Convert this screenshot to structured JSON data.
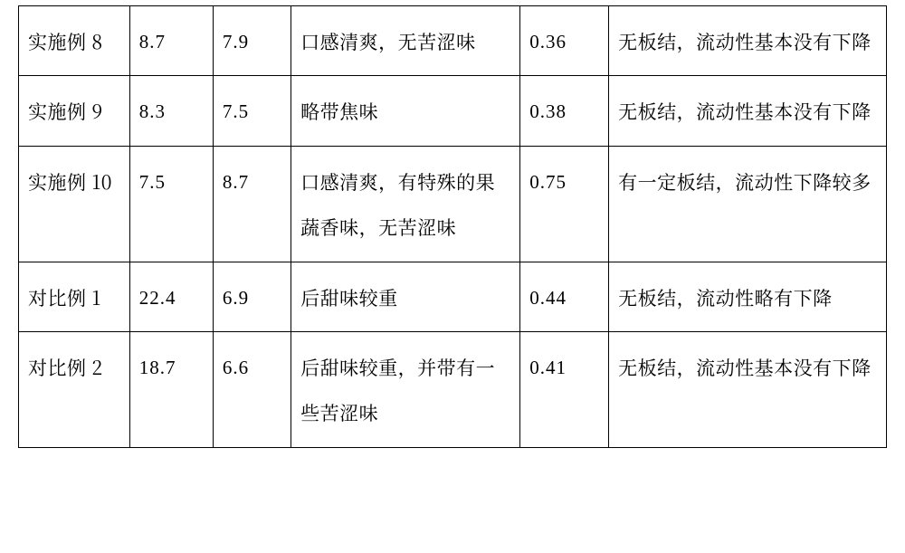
{
  "table": {
    "type": "table",
    "background_color": "#ffffff",
    "grid_color": "#000000",
    "text_color": "#000000",
    "font_family": "SimSun, serif",
    "font_size_pt": 16,
    "line_height": 2.4,
    "column_widths_pct": [
      12.8,
      9.6,
      9.0,
      26.4,
      10.2,
      32.0
    ],
    "column_align": [
      "left",
      "left",
      "left",
      "left",
      "left",
      "left"
    ],
    "rows": [
      {
        "label": "实施例 8",
        "col2": "8.7",
        "col3": "7.9",
        "col4": "口感清爽，无苦涩味",
        "col5": "0.36",
        "col6": "无板结，流动性基本没有下降"
      },
      {
        "label": "实施例 9",
        "col2": "8.3",
        "col3": "7.5",
        "col4": "略带焦味",
        "col5": "0.38",
        "col6": "无板结，流动性基本没有下降"
      },
      {
        "label": "实施例 10",
        "col2": "7.5",
        "col3": "8.7",
        "col4": "口感清爽，有特殊的果蔬香味，无苦涩味",
        "col5": "0.75",
        "col6": "有一定板结，流动性下降较多"
      },
      {
        "label": "对比例 1",
        "col2": "22.4",
        "col3": "6.9",
        "col4": "后甜味较重",
        "col5": "0.44",
        "col6": "无板结，流动性略有下降"
      },
      {
        "label": "对比例 2",
        "col2": "18.7",
        "col3": "6.6",
        "col4": "后甜味较重，并带有一些苦涩味",
        "col5": "0.41",
        "col6": "无板结，流动性基本没有下降"
      }
    ]
  }
}
